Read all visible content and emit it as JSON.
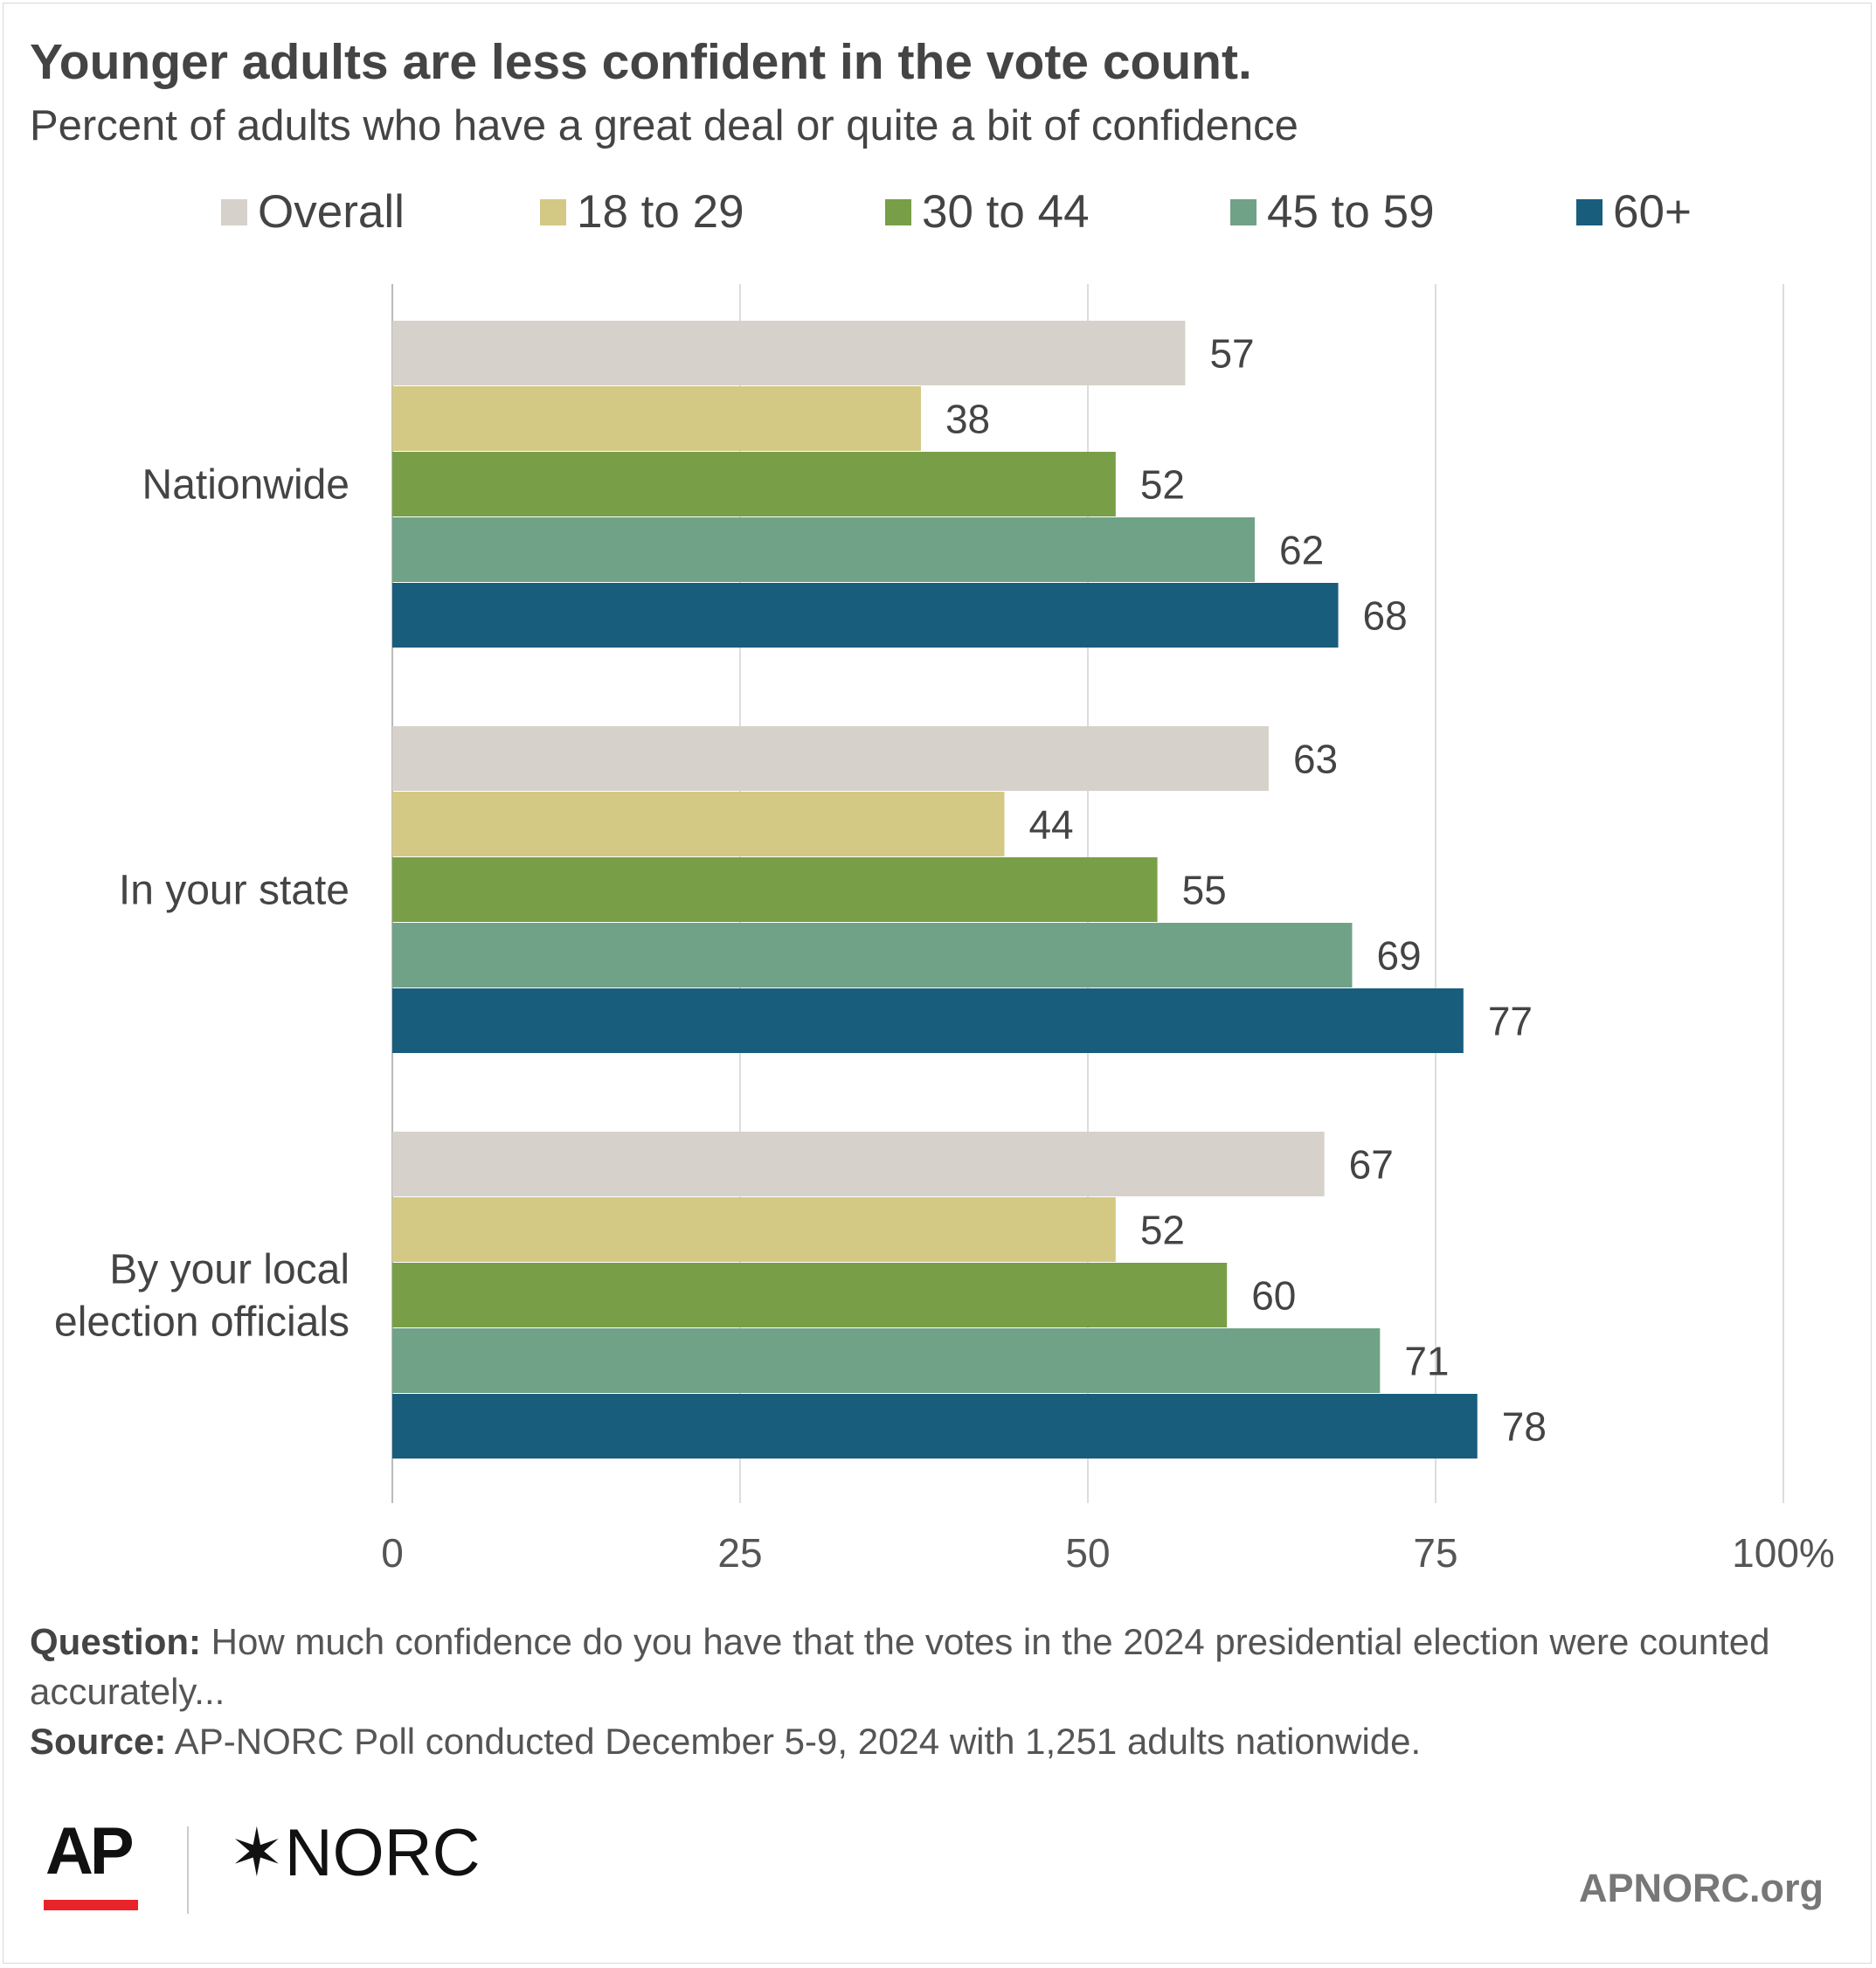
{
  "title": "Younger adults are less confident in the vote count.",
  "subtitle": "Percent of adults who have a great deal or quite a bit of confidence",
  "chart_data": {
    "type": "bar",
    "orientation": "horizontal",
    "categories": [
      "Nationwide",
      "In your state",
      "By your local election officials"
    ],
    "category_lines": [
      [
        "Nationwide"
      ],
      [
        "In your state"
      ],
      [
        "By your local",
        "election officials"
      ]
    ],
    "series": [
      {
        "name": "Overall",
        "color": "#d6d2cb",
        "values": [
          57,
          63,
          67
        ]
      },
      {
        "name": "18 to 29",
        "color": "#d3c985",
        "values": [
          38,
          44,
          52
        ]
      },
      {
        "name": "30 to 44",
        "color": "#789f47",
        "values": [
          52,
          55,
          60
        ]
      },
      {
        "name": "45 to 59",
        "color": "#70a287",
        "values": [
          62,
          69,
          71
        ]
      },
      {
        "name": "60+",
        "color": "#195d7d",
        "values": [
          68,
          77,
          78
        ]
      }
    ],
    "xlim": [
      0,
      100
    ],
    "ticks": [
      0,
      25,
      50,
      75,
      100
    ],
    "tick_labels": [
      "0",
      "25",
      "50",
      "75",
      "100%"
    ],
    "grid": true,
    "legend_position": "top",
    "data_labels": true
  },
  "footnote": {
    "question_label": "Question:",
    "question_text": "How much confidence do you have that the votes in the 2024 presidential election were counted accurately...",
    "source_label": "Source:",
    "source_text": "AP-NORC Poll conducted December 5-9, 2024 with 1,251 adults nationwide."
  },
  "branding": {
    "ap_logo": "AP",
    "norc_logo": "NORC",
    "norc_mark": "✶",
    "site": "APNORC.org",
    "ap_accent_color": "#e8242a"
  }
}
